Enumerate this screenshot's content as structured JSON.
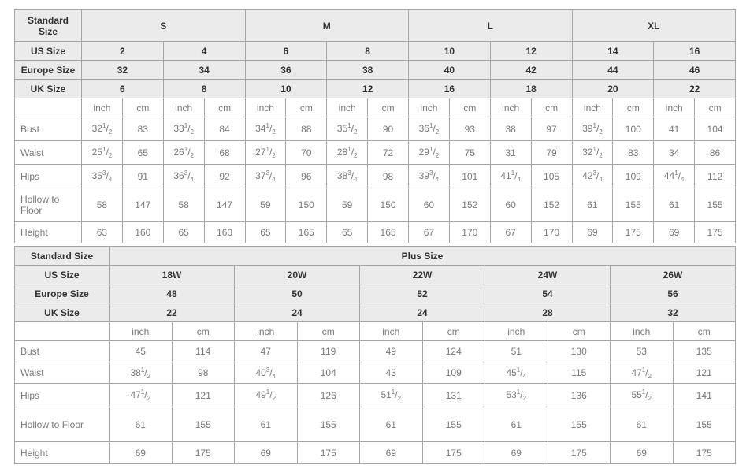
{
  "colors": {
    "header_bg": "#ebebeb",
    "header_text": "#333333",
    "data_text": "#787878",
    "border": "#a6a6a6"
  },
  "tables": [
    {
      "id": "standard",
      "name": "standard-size-table",
      "label_col_width": 85,
      "data_col_count": 16,
      "header_rows": [
        {
          "label": "Standard Size",
          "cells": [
            {
              "text": "S",
              "span": 4
            },
            {
              "text": "M",
              "span": 4
            },
            {
              "text": "L",
              "span": 4
            },
            {
              "text": "XL",
              "span": 4
            }
          ]
        },
        {
          "label": "US Size",
          "cells": [
            {
              "text": "2",
              "span": 2
            },
            {
              "text": "4",
              "span": 2
            },
            {
              "text": "6",
              "span": 2
            },
            {
              "text": "8",
              "span": 2
            },
            {
              "text": "10",
              "span": 2
            },
            {
              "text": "12",
              "span": 2
            },
            {
              "text": "14",
              "span": 2
            },
            {
              "text": "16",
              "span": 2
            }
          ]
        },
        {
          "label": "Europe Size",
          "cells": [
            {
              "text": "32",
              "span": 2
            },
            {
              "text": "34",
              "span": 2
            },
            {
              "text": "36",
              "span": 2
            },
            {
              "text": "38",
              "span": 2
            },
            {
              "text": "40",
              "span": 2
            },
            {
              "text": "42",
              "span": 2
            },
            {
              "text": "44",
              "span": 2
            },
            {
              "text": "46",
              "span": 2
            }
          ]
        },
        {
          "label": "UK Size",
          "cells": [
            {
              "text": "6",
              "span": 2
            },
            {
              "text": "8",
              "span": 2
            },
            {
              "text": "10",
              "span": 2
            },
            {
              "text": "12",
              "span": 2
            },
            {
              "text": "16",
              "span": 2
            },
            {
              "text": "18",
              "span": 2
            },
            {
              "text": "20",
              "span": 2
            },
            {
              "text": "22",
              "span": 2
            }
          ]
        }
      ],
      "units": [
        "inch",
        "cm",
        "inch",
        "cm",
        "inch",
        "cm",
        "inch",
        "cm",
        "inch",
        "cm",
        "inch",
        "cm",
        "inch",
        "cm",
        "inch",
        "cm"
      ],
      "measurement_rows": [
        {
          "label": "Bust",
          "values": [
            "32½",
            "83",
            "33½",
            "84",
            "34½",
            "88",
            "35½",
            "90",
            "36½",
            "93",
            "38",
            "97",
            "39½",
            "100",
            "41",
            "104"
          ]
        },
        {
          "label": "Waist",
          "values": [
            "25½",
            "65",
            "26½",
            "68",
            "27½",
            "70",
            "28½",
            "72",
            "29½",
            "75",
            "31",
            "79",
            "32½",
            "83",
            "34",
            "86"
          ]
        },
        {
          "label": "Hips",
          "values": [
            "35¾",
            "91",
            "36¾",
            "92",
            "37¾",
            "96",
            "38¾",
            "98",
            "39¾",
            "101",
            "41¼",
            "105",
            "42¾",
            "109",
            "44¼",
            "112"
          ]
        },
        {
          "label": "Hollow to Floor",
          "values": [
            "58",
            "147",
            "58",
            "147",
            "59",
            "150",
            "59",
            "150",
            "60",
            "152",
            "60",
            "152",
            "61",
            "155",
            "61",
            "155"
          ]
        },
        {
          "label": "Height",
          "values": [
            "63",
            "160",
            "65",
            "160",
            "65",
            "165",
            "65",
            "165",
            "67",
            "170",
            "67",
            "170",
            "69",
            "175",
            "69",
            "175"
          ]
        }
      ]
    },
    {
      "id": "plus",
      "name": "plus-size-table",
      "label_col_width": 120,
      "data_col_count": 10,
      "header_rows": [
        {
          "label": "Standard Size",
          "cells": [
            {
              "text": "Plus Size",
              "span": 10
            }
          ]
        },
        {
          "label": "US Size",
          "cells": [
            {
              "text": "18W",
              "span": 2
            },
            {
              "text": "20W",
              "span": 2
            },
            {
              "text": "22W",
              "span": 2
            },
            {
              "text": "24W",
              "span": 2
            },
            {
              "text": "26W",
              "span": 2
            }
          ]
        },
        {
          "label": "Europe Size",
          "cells": [
            {
              "text": "48",
              "span": 2
            },
            {
              "text": "50",
              "span": 2
            },
            {
              "text": "52",
              "span": 2
            },
            {
              "text": "54",
              "span": 2
            },
            {
              "text": "56",
              "span": 2
            }
          ]
        },
        {
          "label": "UK Size",
          "cells": [
            {
              "text": "22",
              "span": 2
            },
            {
              "text": "24",
              "span": 2
            },
            {
              "text": "24",
              "span": 2
            },
            {
              "text": "28",
              "span": 2
            },
            {
              "text": "32",
              "span": 2
            }
          ]
        }
      ],
      "units": [
        "inch",
        "cm",
        "inch",
        "cm",
        "inch",
        "cm",
        "inch",
        "cm",
        "inch",
        "cm"
      ],
      "measurement_rows": [
        {
          "label": "Bust",
          "values": [
            "45",
            "114",
            "47",
            "119",
            "49",
            "124",
            "51",
            "130",
            "53",
            "135"
          ]
        },
        {
          "label": "Waist",
          "values": [
            "38½",
            "98",
            "40¾",
            "104",
            "43",
            "109",
            "45¼",
            "115",
            "47½",
            "121"
          ]
        },
        {
          "label": "Hips",
          "values": [
            "47½",
            "121",
            "49½",
            "126",
            "51½",
            "131",
            "53½",
            "136",
            "55½",
            "141"
          ]
        },
        {
          "label": "Hollow to Floor",
          "values": [
            "61",
            "155",
            "61",
            "155",
            "61",
            "155",
            "61",
            "155",
            "61",
            "155"
          ]
        },
        {
          "label": "Height",
          "values": [
            "69",
            "175",
            "69",
            "175",
            "69",
            "175",
            "69",
            "175",
            "69",
            "175"
          ]
        }
      ]
    }
  ]
}
